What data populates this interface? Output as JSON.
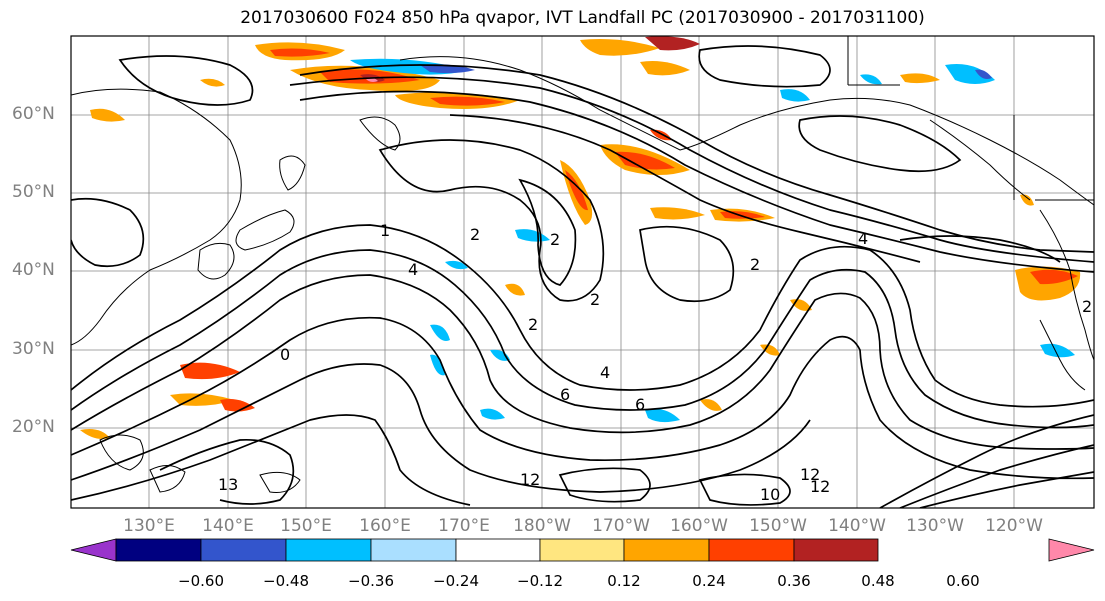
{
  "title": "2017030600 F024 850 hPa qvapor, IVT Landfall PC (2017030900 - 2017031100)",
  "lat_labels": [
    "60°N",
    "50°N",
    "40°N",
    "30°N",
    "20°N"
  ],
  "lon_labels": [
    "130°E",
    "140°E",
    "150°E",
    "160°E",
    "170°E",
    "180°W",
    "170°W",
    "160°W",
    "150°W",
    "140°W",
    "130°W",
    "120°W"
  ],
  "colorbar": {
    "colors": [
      "#9933cc",
      "#000080",
      "#3355cc",
      "#00bfff",
      "#aadfff",
      "#ffffff",
      "#ffe680",
      "#ffa500",
      "#ff4000",
      "#b22222",
      "#ff88aa"
    ],
    "tick_labels": [
      "−0.60",
      "−0.48",
      "−0.36",
      "−0.24",
      "−0.12",
      "0.12",
      "0.24",
      "0.36",
      "0.48",
      "0.60"
    ]
  },
  "contour_labels": [
    "1",
    "2",
    "4",
    "2",
    "2",
    "2",
    "4",
    "6",
    "6",
    "12",
    "12",
    "10",
    "13",
    "2",
    "4",
    "2",
    "0",
    "12"
  ]
}
